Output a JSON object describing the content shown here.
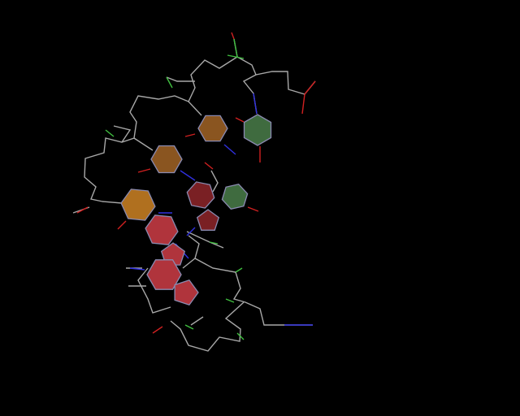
{
  "viewer": {
    "background": "#000000",
    "colors": {
      "bond": "#a8a8a8",
      "oxygen": "#d02020",
      "nitrogen": "#3030e0",
      "phosphorus": "#40c040",
      "ring_purine_red": "#b0343c",
      "ring_purine_dark": "#7a2024",
      "ring_pyrimidine_brown": "#8a5520",
      "ring_pyrimidine_orange": "#b0701f",
      "ring_pyrimidine_green": "#3f6b3f"
    }
  }
}
